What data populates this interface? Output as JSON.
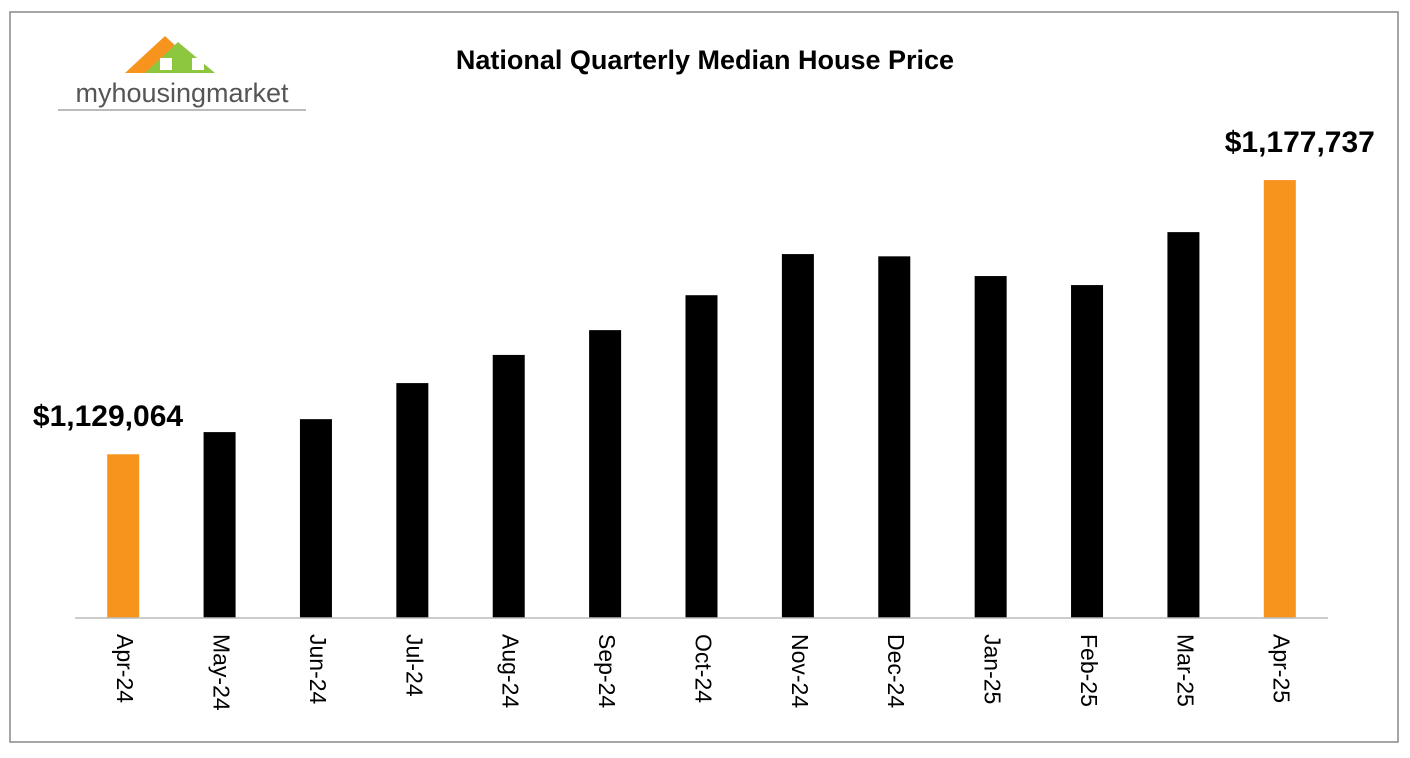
{
  "logo": {
    "text": "myhousingmarket"
  },
  "chart_data": {
    "type": "bar",
    "title": "National Quarterly Median House Price",
    "categories": [
      "Apr-24",
      "May-24",
      "Jun-24",
      "Jul-24",
      "Aug-24",
      "Sep-24",
      "Oct-24",
      "Nov-24",
      "Dec-24",
      "Jan-25",
      "Feb-25",
      "Mar-25",
      "Apr-25"
    ],
    "values": [
      1129064,
      1133000,
      1135300,
      1141700,
      1146700,
      1151100,
      1157300,
      1164600,
      1164200,
      1160700,
      1159100,
      1168500,
      1177737
    ],
    "value_labels": [
      "$1,129,064",
      null,
      null,
      null,
      null,
      null,
      null,
      null,
      null,
      null,
      null,
      null,
      "$1,177,737"
    ],
    "colors": [
      "#f7941d",
      "#000000",
      "#000000",
      "#000000",
      "#000000",
      "#000000",
      "#000000",
      "#000000",
      "#000000",
      "#000000",
      "#000000",
      "#000000",
      "#f7941d"
    ],
    "ylim": [
      1100000,
      1190000
    ],
    "grid": false
  }
}
